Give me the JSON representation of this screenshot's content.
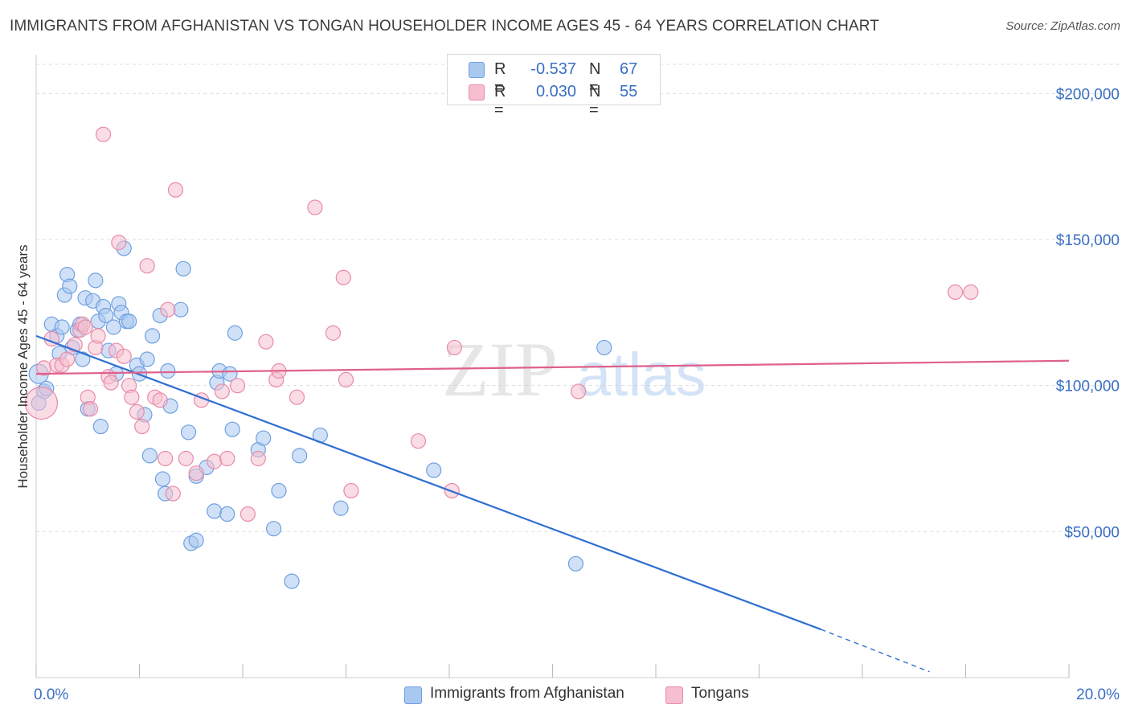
{
  "title": "IMMIGRANTS FROM AFGHANISTAN VS TONGAN HOUSEHOLDER INCOME AGES 45 - 64 YEARS CORRELATION CHART",
  "source": "Source: ZipAtlas.com",
  "watermark": {
    "zip": "ZIP",
    "atlas": "atlas"
  },
  "colors": {
    "blue_fill": "#a9c8f0",
    "blue_stroke": "#6f9fe0",
    "blue_line": "#2f6fd0",
    "pink_fill": "#f6bfd0",
    "pink_stroke": "#e88aa8",
    "pink_line": "#e0608a",
    "tick_label": "#3a6fc4",
    "grid": "#dddddd"
  },
  "stats": [
    {
      "r_label": "R =",
      "r_value": "-0.537",
      "n_label": "N =",
      "n_value": "67",
      "color": "#a9c8f0"
    },
    {
      "r_label": "R =",
      "r_value": "0.030",
      "n_label": "N =",
      "n_value": "55",
      "color": "#f6bfd0"
    }
  ],
  "legend": [
    {
      "label": "Immigrants from Afghanistan",
      "color": "#a9c8f0"
    },
    {
      "label": "Tongans",
      "color": "#f6bfd0"
    }
  ],
  "chart_data": {
    "type": "scatter",
    "title": "IMMIGRANTS FROM AFGHANISTAN VS TONGAN HOUSEHOLDER INCOME AGES 45 - 64 YEARS CORRELATION CHART",
    "xlabel": "",
    "ylabel": "Householder Income Ages 45 - 64 years",
    "xlim": [
      0,
      20
    ],
    "ylim": [
      0,
      210000
    ],
    "x_tick_labels": [
      "0.0%",
      "20.0%"
    ],
    "y_ticks": [
      50000,
      100000,
      150000,
      200000
    ],
    "y_tick_labels": [
      "$50,000",
      "$100,000",
      "$150,000",
      "$200,000"
    ],
    "grid": true,
    "legend_position": "bottom",
    "series": [
      {
        "name": "Immigrants from Afghanistan",
        "color": "#a9c8f0",
        "trend": {
          "x": [
            0,
            15.2
          ],
          "y": [
            117000,
            16500
          ],
          "dashed_to": [
            17.3,
            2000
          ]
        },
        "points": [
          [
            0.05,
            104000
          ],
          [
            0.15,
            98000
          ],
          [
            0.2,
            99000
          ],
          [
            0.3,
            121000
          ],
          [
            0.4,
            117000
          ],
          [
            0.45,
            111000
          ],
          [
            0.5,
            120000
          ],
          [
            0.55,
            131000
          ],
          [
            0.6,
            138000
          ],
          [
            0.65,
            134000
          ],
          [
            0.7,
            113000
          ],
          [
            0.8,
            119000
          ],
          [
            0.85,
            121000
          ],
          [
            0.9,
            109000
          ],
          [
            0.95,
            130000
          ],
          [
            1.0,
            92000
          ],
          [
            1.1,
            129000
          ],
          [
            1.15,
            136000
          ],
          [
            1.2,
            122000
          ],
          [
            1.25,
            86000
          ],
          [
            1.3,
            127000
          ],
          [
            1.35,
            124000
          ],
          [
            1.4,
            112000
          ],
          [
            1.5,
            120000
          ],
          [
            1.55,
            104000
          ],
          [
            1.6,
            128000
          ],
          [
            1.65,
            125000
          ],
          [
            1.7,
            147000
          ],
          [
            1.75,
            122000
          ],
          [
            1.8,
            122000
          ],
          [
            1.95,
            107000
          ],
          [
            2.1,
            90000
          ],
          [
            2.15,
            109000
          ],
          [
            2.2,
            76000
          ],
          [
            2.25,
            117000
          ],
          [
            2.4,
            124000
          ],
          [
            2.45,
            68000
          ],
          [
            2.5,
            63000
          ],
          [
            2.55,
            105000
          ],
          [
            2.6,
            93000
          ],
          [
            2.8,
            126000
          ],
          [
            2.85,
            140000
          ],
          [
            2.95,
            84000
          ],
          [
            3.0,
            46000
          ],
          [
            3.1,
            47000
          ],
          [
            3.1,
            69000
          ],
          [
            3.3,
            72000
          ],
          [
            3.45,
            57000
          ],
          [
            3.5,
            101000
          ],
          [
            3.55,
            105000
          ],
          [
            3.7,
            56000
          ],
          [
            3.75,
            104000
          ],
          [
            3.8,
            85000
          ],
          [
            3.85,
            118000
          ],
          [
            4.3,
            78000
          ],
          [
            4.4,
            82000
          ],
          [
            4.6,
            51000
          ],
          [
            4.7,
            64000
          ],
          [
            4.95,
            33000
          ],
          [
            5.1,
            76000
          ],
          [
            5.5,
            83000
          ],
          [
            5.9,
            58000
          ],
          [
            7.7,
            71000
          ],
          [
            10.45,
            39000
          ],
          [
            11.0,
            113000
          ],
          [
            0.05,
            94000
          ],
          [
            2.0,
            104000
          ]
        ]
      },
      {
        "name": "Tongans",
        "color": "#f6bfd0",
        "trend": {
          "x": [
            0,
            20
          ],
          "y": [
            104000,
            108500
          ]
        },
        "points": [
          [
            0.1,
            94000
          ],
          [
            0.15,
            106000
          ],
          [
            0.3,
            116000
          ],
          [
            0.4,
            107000
          ],
          [
            0.5,
            107000
          ],
          [
            0.6,
            109000
          ],
          [
            0.75,
            114000
          ],
          [
            0.85,
            119000
          ],
          [
            0.9,
            121000
          ],
          [
            0.95,
            120000
          ],
          [
            1.0,
            96000
          ],
          [
            1.05,
            92000
          ],
          [
            1.15,
            113000
          ],
          [
            1.2,
            117000
          ],
          [
            1.3,
            186000
          ],
          [
            1.4,
            103000
          ],
          [
            1.45,
            101000
          ],
          [
            1.55,
            112000
          ],
          [
            1.6,
            149000
          ],
          [
            1.7,
            110000
          ],
          [
            1.8,
            100000
          ],
          [
            1.85,
            96000
          ],
          [
            1.95,
            91000
          ],
          [
            2.05,
            86000
          ],
          [
            2.15,
            141000
          ],
          [
            2.3,
            96000
          ],
          [
            2.4,
            95000
          ],
          [
            2.5,
            75000
          ],
          [
            2.55,
            126000
          ],
          [
            2.65,
            63000
          ],
          [
            2.7,
            167000
          ],
          [
            2.9,
            75000
          ],
          [
            3.1,
            70000
          ],
          [
            3.2,
            95000
          ],
          [
            3.45,
            74000
          ],
          [
            3.6,
            98000
          ],
          [
            3.7,
            75000
          ],
          [
            3.9,
            100000
          ],
          [
            4.1,
            56000
          ],
          [
            4.3,
            75000
          ],
          [
            4.45,
            115000
          ],
          [
            4.65,
            102000
          ],
          [
            4.7,
            105000
          ],
          [
            5.05,
            96000
          ],
          [
            5.4,
            161000
          ],
          [
            5.75,
            118000
          ],
          [
            5.95,
            137000
          ],
          [
            6.0,
            102000
          ],
          [
            6.1,
            64000
          ],
          [
            7.4,
            81000
          ],
          [
            8.05,
            64000
          ],
          [
            8.1,
            113000
          ],
          [
            10.5,
            98000
          ],
          [
            17.8,
            132000
          ],
          [
            18.1,
            132000
          ]
        ]
      }
    ]
  }
}
